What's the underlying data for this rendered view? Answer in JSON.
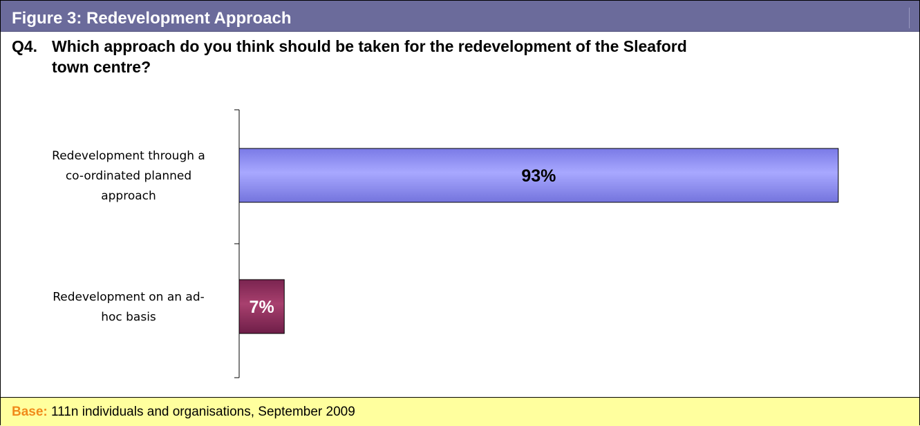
{
  "header": {
    "title": "Figure 3: Redevelopment Approach"
  },
  "question": {
    "number": "Q4.",
    "line1": "Which approach do you think should be taken for the redevelopment of the Sleaford",
    "line2": "town centre?"
  },
  "chart_data": {
    "type": "bar",
    "orientation": "horizontal",
    "categories": [
      "Redevelopment through a co-ordinated planned approach",
      "Redevelopment on an ad-hoc basis"
    ],
    "category_label_lines": [
      [
        "Redevelopment through a",
        "co-ordinated planned",
        "approach"
      ],
      [
        "Redevelopment on an ad-",
        "hoc basis"
      ]
    ],
    "values": [
      93,
      7
    ],
    "value_labels": [
      "93%",
      "7%"
    ],
    "unit": "%",
    "xlim": [
      0,
      100
    ],
    "bar_colors": [
      "#9999ff",
      "#993366"
    ],
    "label_colors": [
      "#000000",
      "#ffffff"
    ],
    "grid": false,
    "legend": "none",
    "title": "",
    "xlabel": "",
    "ylabel": ""
  },
  "footer": {
    "key": "Base:",
    "text": " 111n individuals and organisations, September 2009"
  }
}
